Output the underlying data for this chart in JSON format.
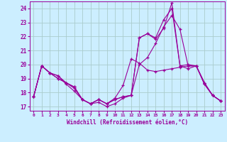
{
  "bg_color": "#cceeff",
  "grid_color": "#aacccc",
  "line_color": "#990099",
  "xlabel": "Windchill (Refroidissement éolien,°C)",
  "ylim": [
    16.7,
    24.5
  ],
  "xlim": [
    -0.5,
    23.5
  ],
  "yticks": [
    17,
    18,
    19,
    20,
    21,
    22,
    23,
    24
  ],
  "xticks": [
    0,
    1,
    2,
    3,
    4,
    5,
    6,
    7,
    8,
    9,
    10,
    11,
    12,
    13,
    14,
    15,
    16,
    17,
    18,
    19,
    20,
    21,
    22,
    23
  ],
  "lines": [
    [
      17.7,
      19.9,
      19.4,
      19.0,
      18.7,
      18.3,
      17.5,
      17.2,
      17.5,
      17.2,
      17.5,
      17.7,
      17.8,
      21.9,
      22.2,
      21.9,
      23.2,
      24.0,
      19.9,
      20.0,
      19.9,
      18.6,
      17.8,
      17.4
    ],
    [
      17.7,
      19.9,
      19.4,
      19.0,
      18.7,
      18.4,
      17.5,
      17.2,
      17.5,
      17.2,
      17.5,
      17.7,
      17.8,
      21.9,
      22.2,
      21.8,
      22.6,
      24.4,
      19.9,
      19.7,
      19.9,
      18.6,
      17.8,
      17.4
    ],
    [
      17.7,
      19.9,
      19.4,
      19.2,
      18.6,
      18.1,
      17.5,
      17.2,
      17.3,
      17.0,
      17.2,
      17.6,
      17.8,
      20.0,
      20.5,
      21.5,
      22.7,
      23.5,
      22.5,
      19.9,
      19.9,
      18.7,
      17.8,
      17.4
    ],
    [
      17.7,
      19.9,
      19.4,
      19.2,
      18.7,
      18.4,
      17.5,
      17.2,
      17.5,
      17.2,
      17.6,
      18.5,
      20.4,
      20.1,
      19.6,
      19.5,
      19.6,
      19.7,
      19.8,
      19.9,
      19.9,
      18.7,
      17.8,
      17.4
    ]
  ]
}
